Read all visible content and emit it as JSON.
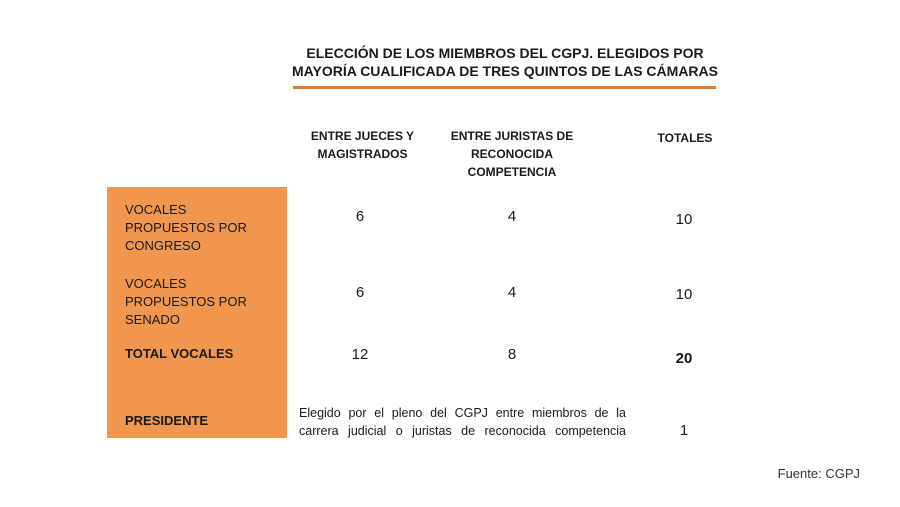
{
  "title": "ELECCIÓN DE LOS MIEMBROS DEL CGPJ. ELEGIDOS POR MAYORÍA CUALIFICADA DE TRES QUINTOS DE LAS CÁMARAS",
  "columns": [
    "ENTRE JUECES Y MAGISTRADOS",
    "ENTRE JURISTAS DE RECONOCIDA COMPETENCIA",
    "TOTALES"
  ],
  "rows": [
    {
      "label": "VOCALES PROPUESTOS POR CONGRESO",
      "values": [
        "6",
        "4",
        "10"
      ]
    },
    {
      "label": "VOCALES PROPUESTOS POR SENADO",
      "values": [
        "6",
        "4",
        "10"
      ]
    },
    {
      "label": "TOTAL VOCALES",
      "values": [
        "12",
        "8",
        "20"
      ]
    },
    {
      "label": "PRESIDENTE",
      "note": "Elegido por el pleno del CGPJ entre miembros de la carrera judicial o juristas de reconocida competencia",
      "total": "1"
    }
  ],
  "source": "Fuente: CGPJ",
  "colors": {
    "accent": "#f0964f",
    "rule": "#e07b2a"
  }
}
